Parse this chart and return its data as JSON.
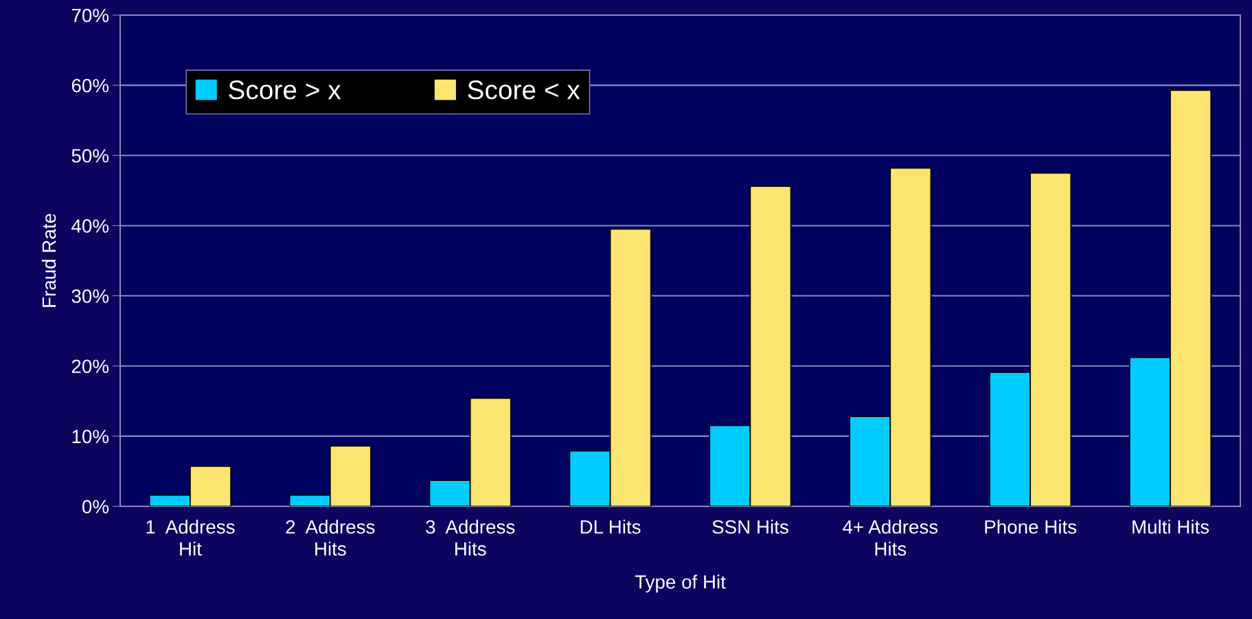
{
  "chart_data": {
    "type": "bar",
    "xlabel": "Type of Hit",
    "ylabel": "Fraud Rate",
    "categories": [
      "1  Address\nHit",
      "2  Address\nHits",
      "3  Address\nHits",
      "DL Hits",
      "SSN Hits",
      "4+ Address\nHits",
      "Phone Hits",
      "Multi Hits"
    ],
    "series": [
      {
        "name": "Score > x",
        "color": "#00ccff",
        "values": [
          1.6,
          1.6,
          3.7,
          7.9,
          11.5,
          12.8,
          19.1,
          21.2
        ]
      },
      {
        "name": "Score < x",
        "color": "#fce570",
        "values": [
          5.7,
          8.6,
          15.4,
          39.5,
          45.6,
          48.2,
          47.5,
          59.3
        ]
      }
    ],
    "ylim": [
      0,
      70
    ],
    "yticks": [
      {
        "value": 0,
        "label": "0%"
      },
      {
        "value": 10,
        "label": "10%"
      },
      {
        "value": 20,
        "label": "20%"
      },
      {
        "value": 30,
        "label": "30%"
      },
      {
        "value": 40,
        "label": "40%"
      },
      {
        "value": 50,
        "label": "50%"
      },
      {
        "value": 60,
        "label": "60%"
      },
      {
        "value": 70,
        "label": "70%"
      }
    ],
    "grid": "y",
    "legend": "top left"
  }
}
